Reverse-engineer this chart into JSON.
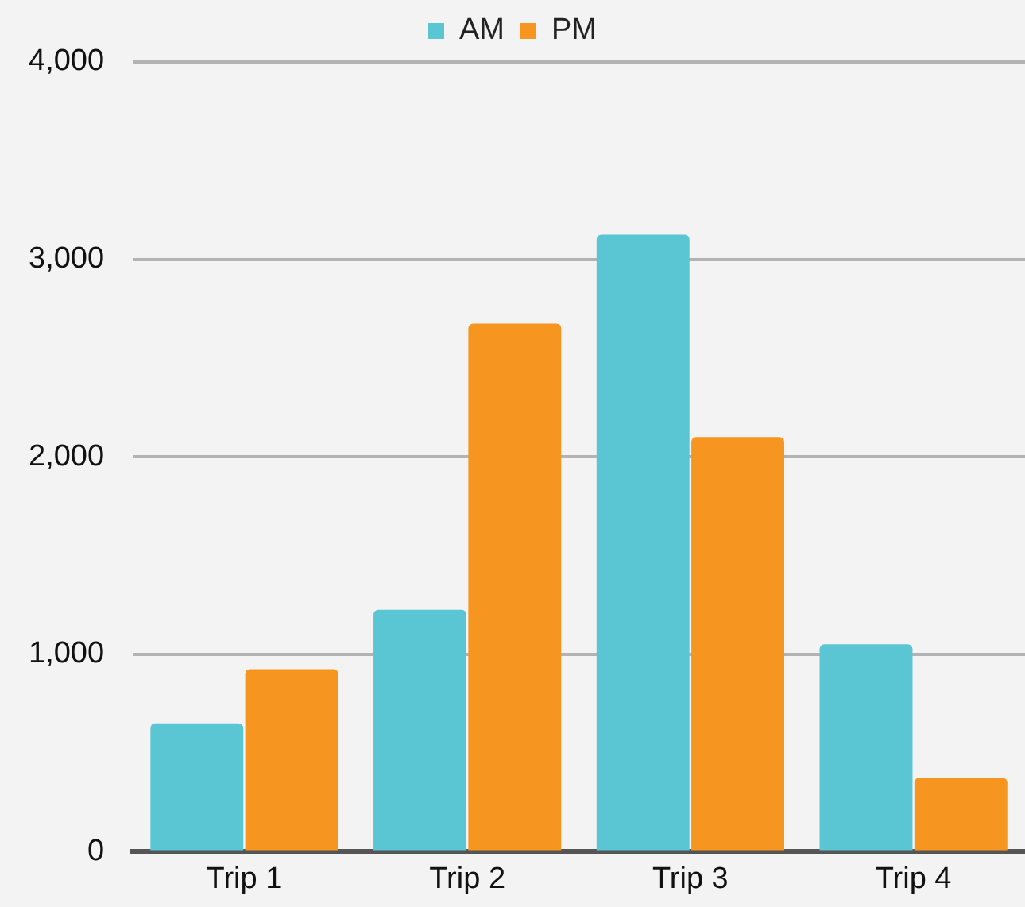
{
  "chart_data": {
    "type": "bar",
    "categories": [
      "Trip 1",
      "Trip 2",
      "Trip 3",
      "Trip 4"
    ],
    "series": [
      {
        "name": "AM",
        "color": "#5bc6d3",
        "values": [
          650,
          1225,
          3125,
          1050
        ]
      },
      {
        "name": "PM",
        "color": "#f79521",
        "values": [
          925,
          2675,
          2100,
          375
        ]
      }
    ],
    "ylim": [
      0,
      4000
    ],
    "yticks": [
      {
        "value": 0,
        "label": "0"
      },
      {
        "value": 1000,
        "label": "1,000"
      },
      {
        "value": 2000,
        "label": "2,000"
      },
      {
        "value": 3000,
        "label": "3,000"
      },
      {
        "value": 4000,
        "label": "4,000"
      }
    ],
    "grid": "y",
    "legend": "top"
  }
}
